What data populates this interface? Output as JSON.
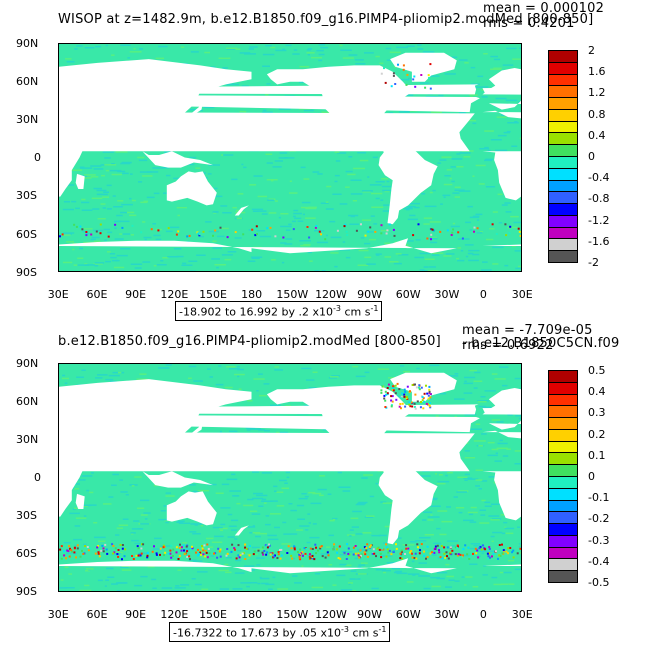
{
  "top": {
    "title": "WISOP at z=1482.9m, b.e12.B1850.f09_g16.PIMP4-pliomip2.modMed [800-850]",
    "mean": "mean = 0.000102",
    "rms": "rms = 0.4201",
    "range_text": "-18.902 to 16.992 by .2 x10",
    "range_exp": "-3",
    "range_units": " cm s",
    "range_units_exp": "-1",
    "colorbar_labels": [
      "2",
      "1.6",
      "1.2",
      "0.8",
      "0.4",
      "0",
      "-0.4",
      "-0.8",
      "-1.2",
      "-1.6",
      "-2"
    ]
  },
  "bottom": {
    "title": "b.e12.B1850.f09_g16.PIMP4-pliomip2.modMed [800-850]",
    "title_suffix": "- b.e12.B1850C5CN.f09",
    "mean": "mean = -7.709e-05",
    "rms": "rms = 0.6922",
    "range_text": "-16.7322 to 17.673 by .05 x10",
    "range_exp": "-3",
    "range_units": " cm s",
    "range_units_exp": "-1",
    "colorbar_labels": [
      "0.5",
      "0.4",
      "0.3",
      "0.2",
      "0.1",
      "0",
      "-0.1",
      "-0.2",
      "-0.3",
      "-0.4",
      "-0.5"
    ]
  },
  "lat_labels": [
    "90N",
    "60N",
    "30N",
    "0",
    "30S",
    "60S",
    "90S"
  ],
  "lon_labels": [
    "30E",
    "60E",
    "90E",
    "120E",
    "150E",
    "180",
    "150W",
    "120W",
    "90W",
    "60W",
    "30W",
    "0",
    "30E"
  ],
  "colors": {
    "palette": [
      "#555555",
      "#d0d0d0",
      "#c000c0",
      "#8000ff",
      "#0000ff",
      "#3060ff",
      "#00a0ff",
      "#00e0ff",
      "#20f0c0",
      "#40e060",
      "#9ae000",
      "#f0f000",
      "#ffd000",
      "#ffa000",
      "#ff7000",
      "#ff3000",
      "#e00000",
      "#b00000"
    ],
    "ocean": "#39e8a8",
    "ocean_alt": "#28d8c8",
    "land": "#ffffff"
  }
}
